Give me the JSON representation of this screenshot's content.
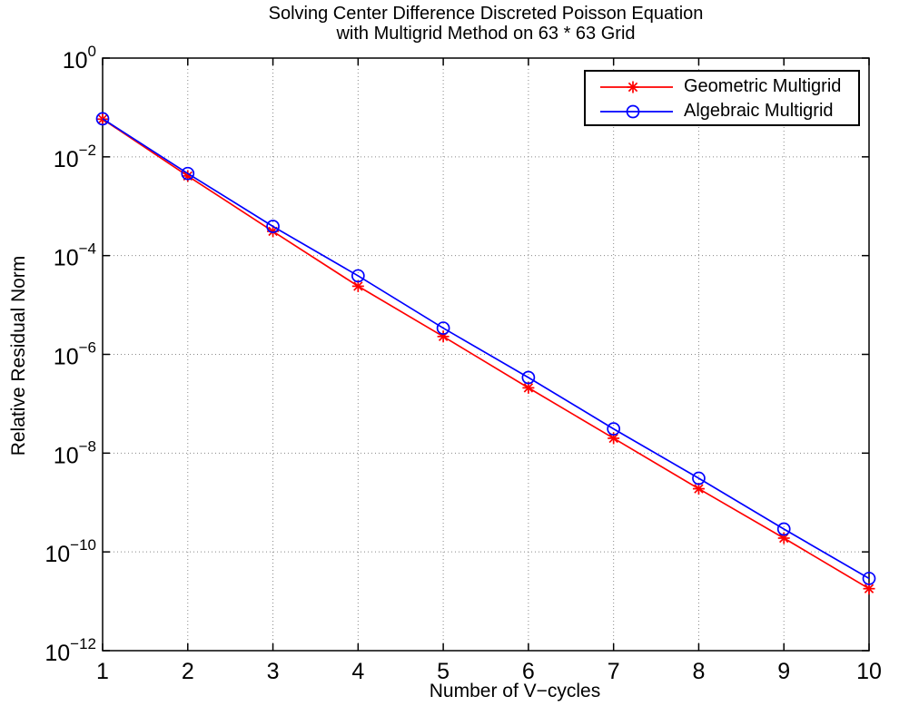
{
  "chart_data": {
    "type": "line",
    "title_line1": "Solving Center Difference Discreted Poisson Equation",
    "title_line2": "with Multigrid Method on 63 * 63 Grid",
    "xlabel": "Number of V−cycles",
    "ylabel": "Relative Residual Norm",
    "x": [
      1,
      2,
      3,
      4,
      5,
      6,
      7,
      8,
      9,
      10
    ],
    "x_tick_labels": [
      "1",
      "2",
      "3",
      "4",
      "5",
      "6",
      "7",
      "8",
      "9",
      "10"
    ],
    "xlim": [
      1,
      10
    ],
    "y_scale": "log10",
    "ylim": [
      1e-12,
      1
    ],
    "y_tick_exponents": [
      0,
      -2,
      -4,
      -6,
      -8,
      -10,
      -12
    ],
    "y_tick_base": "10",
    "grid": "dotted",
    "legend_position": "top-right",
    "series": [
      {
        "name": "Geometric Multigrid",
        "color": "#ff0000",
        "marker": "asterisk",
        "values": [
          0.058,
          0.0041,
          0.00031,
          2.4e-05,
          2.3e-06,
          2.1e-07,
          2e-08,
          1.9e-09,
          1.9e-10,
          1.8e-11
        ]
      },
      {
        "name": "Algebraic Multigrid",
        "color": "#0000ff",
        "marker": "circle",
        "values": [
          0.059,
          0.0046,
          0.00039,
          3.9e-05,
          3.4e-06,
          3.4e-07,
          3.1e-08,
          3.1e-09,
          2.9e-10,
          2.9e-11
        ]
      }
    ],
    "colors": {
      "axis": "#000000",
      "grid": "#888888",
      "text": "#000000"
    }
  }
}
